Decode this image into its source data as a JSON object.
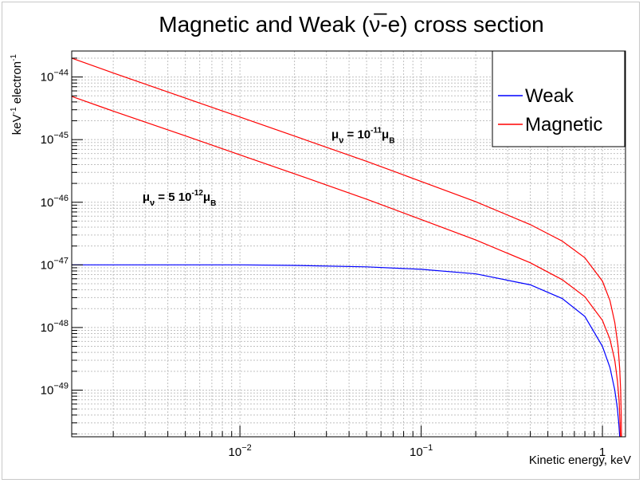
{
  "chart_data": {
    "type": "line",
    "title": "Magnetic and Weak (ν̅-e) cross section",
    "xlabel": "Kinetic energy, keV",
    "ylabel_parts": [
      "keV",
      "-1",
      " electron",
      "-1"
    ],
    "x_scale": "log",
    "y_scale": "log",
    "xlim": [
      0.00118,
      1.34
    ],
    "ylim": [
      1.8e-50,
      2.6e-44
    ],
    "grid": true,
    "x_ticks": [
      {
        "value": 0.01,
        "base": "10",
        "exp": "−2"
      },
      {
        "value": 0.1,
        "base": "10",
        "exp": "−1"
      },
      {
        "value": 1,
        "base": "1",
        "exp": ""
      }
    ],
    "y_ticks": [
      {
        "value": 1e-44,
        "base": "10",
        "exp": "−44"
      },
      {
        "value": 1e-45,
        "base": "10",
        "exp": "−45"
      },
      {
        "value": 1e-46,
        "base": "10",
        "exp": "−46"
      },
      {
        "value": 1e-47,
        "base": "10",
        "exp": "−47"
      },
      {
        "value": 1e-48,
        "base": "10",
        "exp": "−48"
      },
      {
        "value": 1e-49,
        "base": "10",
        "exp": "−49"
      }
    ],
    "legend": {
      "position": "top-right",
      "entries": [
        {
          "name": "Weak",
          "color": "#0000ff"
        },
        {
          "name": "Magnetic",
          "color": "#ff0000"
        }
      ]
    },
    "annotations": [
      {
        "mu": "μ",
        "nu": "ν",
        "eq": " = 10",
        "exp": "-11",
        "mu2": "μ",
        "sub": "B",
        "x": 0.032,
        "y": 1.05e-45
      },
      {
        "mu": "μ",
        "nu": "ν",
        "eq": " = 5 10",
        "exp": "-12",
        "mu2": "μ",
        "sub": "B",
        "x": 0.0029,
        "y": 1.05e-46
      }
    ],
    "series": [
      {
        "name": "Weak",
        "color": "#0000ff",
        "points": [
          [
            0.00118,
            1e-47
          ],
          [
            0.002,
            1e-47
          ],
          [
            0.005,
            1e-47
          ],
          [
            0.01,
            1e-47
          ],
          [
            0.02,
            9.8e-48
          ],
          [
            0.05,
            9.3e-48
          ],
          [
            0.1,
            8.5e-48
          ],
          [
            0.2,
            7.2e-48
          ],
          [
            0.4,
            4.8e-48
          ],
          [
            0.6,
            2.9e-48
          ],
          [
            0.8,
            1.5e-48
          ],
          [
            1.0,
            5e-49
          ],
          [
            1.1,
            2.3e-49
          ],
          [
            1.17,
            1e-49
          ],
          [
            1.21,
            5e-50
          ],
          [
            1.23,
            3e-50
          ],
          [
            1.245,
            1.8e-50
          ]
        ]
      },
      {
        "name": "Magnetic",
        "color": "#ff0000",
        "points": [
          [
            0.00118,
            4.9e-45
          ],
          [
            0.002,
            2.85e-45
          ],
          [
            0.005,
            1.15e-45
          ],
          [
            0.01,
            5.7e-46
          ],
          [
            0.02,
            2.85e-46
          ],
          [
            0.05,
            1.12e-46
          ],
          [
            0.1,
            5.3e-47
          ],
          [
            0.2,
            2.5e-47
          ],
          [
            0.4,
            1.08e-47
          ],
          [
            0.6,
            5.8e-48
          ],
          [
            0.8,
            3.1e-48
          ],
          [
            1.0,
            1.3e-48
          ],
          [
            1.1,
            6.5e-49
          ],
          [
            1.17,
            3e-49
          ],
          [
            1.21,
            1.4e-49
          ],
          [
            1.235,
            7e-50
          ],
          [
            1.25,
            3e-50
          ],
          [
            1.258,
            1.8e-50
          ]
        ]
      },
      {
        "name": "Magnetic",
        "color": "#ff0000",
        "points": [
          [
            0.00118,
            2e-44
          ],
          [
            0.002,
            1.16e-44
          ],
          [
            0.005,
            4.6e-45
          ],
          [
            0.01,
            2.3e-45
          ],
          [
            0.02,
            1.14e-45
          ],
          [
            0.05,
            4.5e-46
          ],
          [
            0.1,
            2.15e-46
          ],
          [
            0.2,
            1.02e-46
          ],
          [
            0.4,
            4.4e-47
          ],
          [
            0.6,
            2.4e-47
          ],
          [
            0.8,
            1.3e-47
          ],
          [
            1.0,
            5.5e-48
          ],
          [
            1.1,
            2.7e-48
          ],
          [
            1.17,
            1.2e-48
          ],
          [
            1.22,
            5e-49
          ],
          [
            1.245,
            2.2e-49
          ],
          [
            1.26,
            1e-49
          ],
          [
            1.27,
            4e-50
          ],
          [
            1.275,
            1.8e-50
          ]
        ]
      }
    ]
  }
}
